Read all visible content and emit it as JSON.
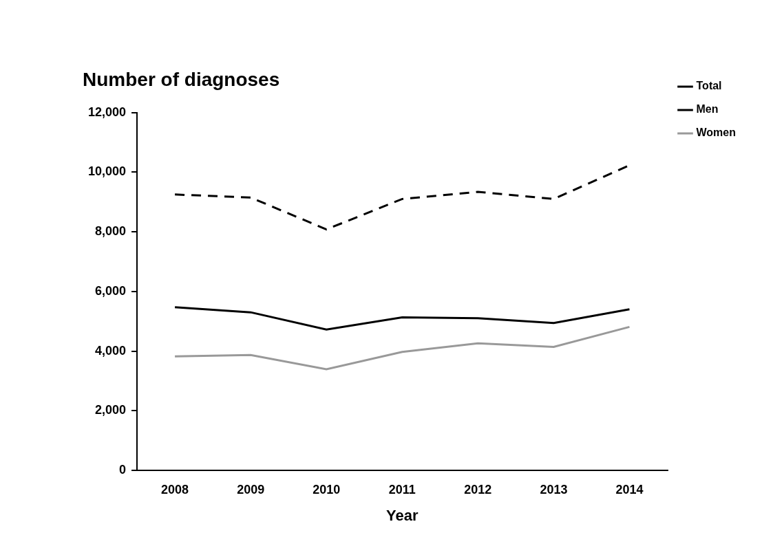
{
  "chart_data": {
    "type": "line",
    "title": "Number of diagnoses",
    "x_label": "Year",
    "categories": [
      "2008",
      "2009",
      "2010",
      "2011",
      "2012",
      "2013",
      "2014"
    ],
    "series": [
      {
        "name": "Total",
        "color": "#000000",
        "line_style": "dashed",
        "values": [
          9250,
          9150,
          8080,
          9100,
          9340,
          9100,
          10230
        ]
      },
      {
        "name": "Men",
        "color": "#000000",
        "line_style": "solid",
        "values": [
          5470,
          5300,
          4720,
          5130,
          5100,
          4940,
          5400
        ]
      },
      {
        "name": "Women",
        "color": "#999999",
        "line_style": "solid",
        "values": [
          3820,
          3870,
          3390,
          3970,
          4260,
          4140,
          4810
        ]
      }
    ],
    "ylim": [
      0,
      12000
    ],
    "yticks": [
      0,
      {
        "value": 2000,
        "label": "2,000"
      },
      {
        "value": 4000,
        "label": "4,000"
      },
      {
        "value": 6000,
        "label": "6,000"
      },
      {
        "value": 8000,
        "label": "8,000"
      },
      {
        "value": 10000,
        "label": "10,000"
      },
      {
        "value": 12000,
        "label": "12,000"
      }
    ],
    "grid": false,
    "legend": "upper right"
  }
}
